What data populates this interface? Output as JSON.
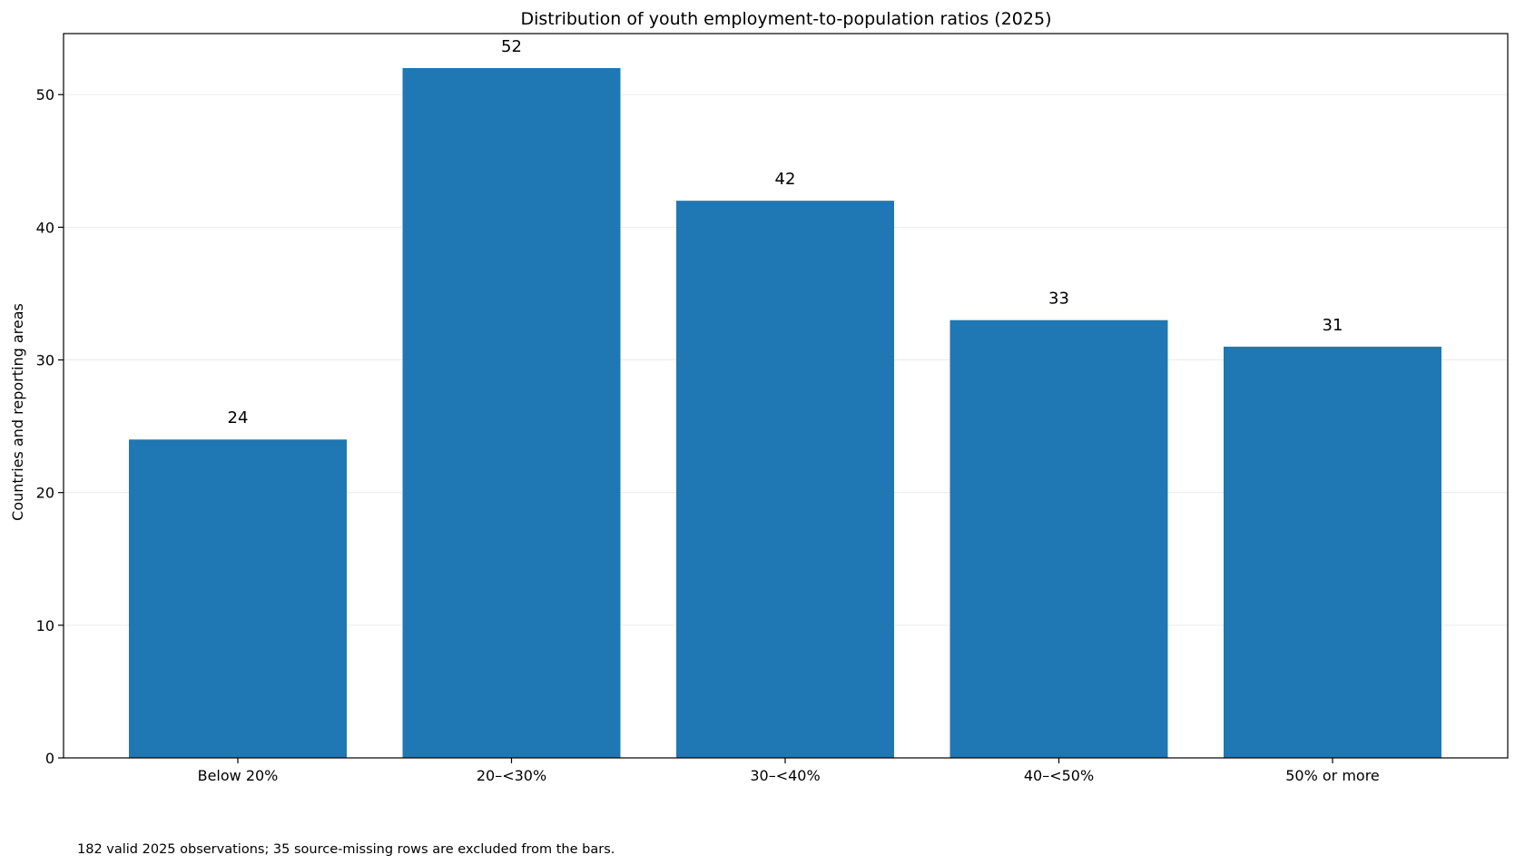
{
  "chart_data": {
    "type": "bar",
    "title": "Distribution of youth employment-to-population ratios (2025)",
    "xlabel": "",
    "ylabel": "Countries and reporting areas",
    "categories": [
      "Below 20%",
      "20–<30%",
      "30–<40%",
      "40–<50%",
      "50% or more"
    ],
    "values": [
      24,
      52,
      42,
      33,
      31
    ],
    "data_labels": [
      "24",
      "52",
      "42",
      "33",
      "31"
    ],
    "ylim": [
      0,
      54.6
    ],
    "yticks": [
      0,
      10,
      20,
      30,
      40,
      50
    ],
    "grid": "y",
    "bar_color": "#1f77b4",
    "footnote": "182 valid 2025 observations; 35 source-missing rows are excluded from the bars."
  }
}
